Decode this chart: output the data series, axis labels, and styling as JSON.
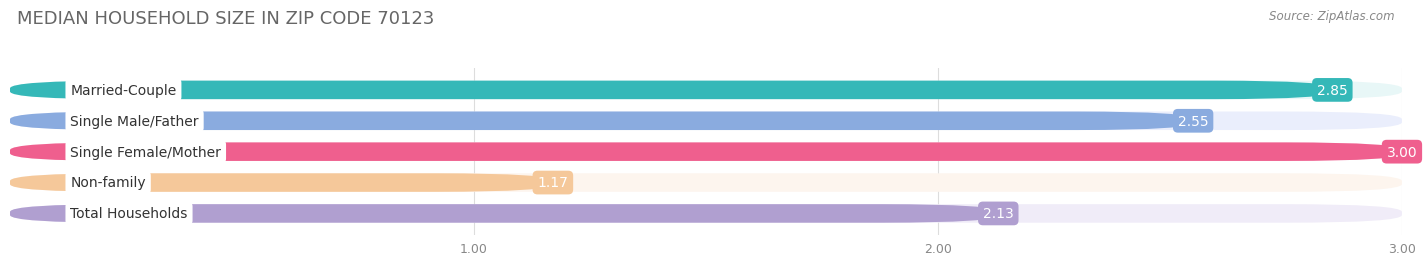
{
  "title": "MEDIAN HOUSEHOLD SIZE IN ZIP CODE 70123",
  "source": "Source: ZipAtlas.com",
  "categories": [
    "Married-Couple",
    "Single Male/Father",
    "Single Female/Mother",
    "Non-family",
    "Total Households"
  ],
  "values": [
    2.85,
    2.55,
    3.0,
    1.17,
    2.13
  ],
  "bar_colors": [
    "#35b8b8",
    "#8aabdf",
    "#ef5f8e",
    "#f5c89a",
    "#b09fd0"
  ],
  "bar_bg_colors": [
    "#e8f7f7",
    "#eaeefc",
    "#fce8f1",
    "#fdf5ee",
    "#f0ecf8"
  ],
  "value_bg_colors": [
    "#35b8b8",
    "#8aabdf",
    "#ef5f8e",
    "#f5c89a",
    "#b09fd0"
  ],
  "xlim": [
    0,
    3.0
  ],
  "xticks": [
    1.0,
    2.0,
    3.0
  ],
  "value_color": "#ffffff",
  "title_color": "#666666",
  "source_color": "#888888",
  "title_fontsize": 13,
  "label_fontsize": 10,
  "value_fontsize": 10,
  "bar_height": 0.6,
  "figsize": [
    14.06,
    2.69
  ],
  "dpi": 100
}
